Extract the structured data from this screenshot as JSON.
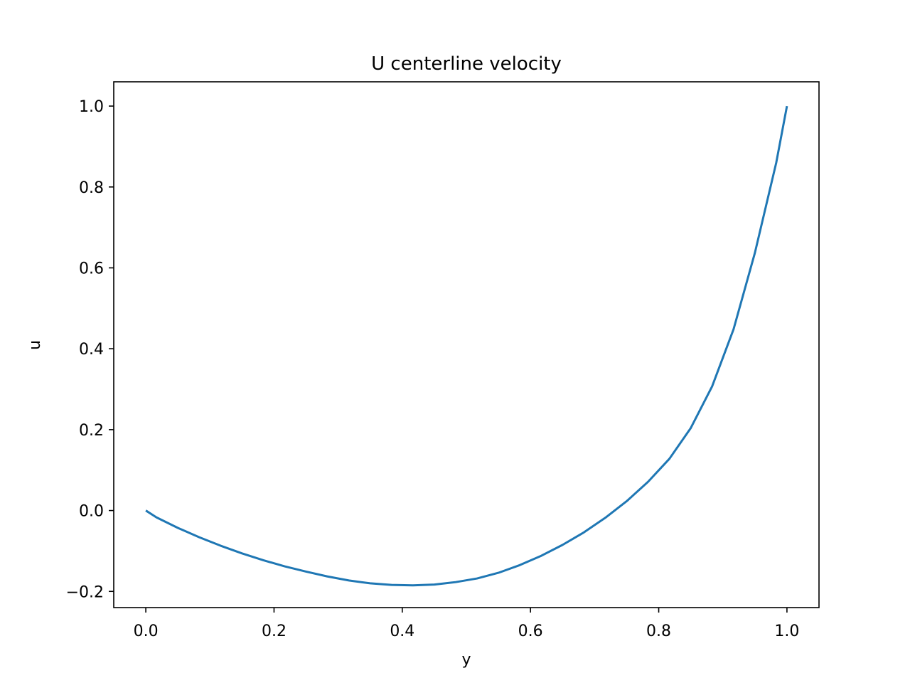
{
  "chart_data": {
    "type": "line",
    "title": "U centerline velocity",
    "xlabel": "y",
    "ylabel": "u",
    "xlim": [
      -0.05,
      1.05
    ],
    "ylim": [
      -0.24,
      1.06
    ],
    "xticks": [
      0.0,
      0.2,
      0.4,
      0.6,
      0.8,
      1.0
    ],
    "xtick_labels": [
      "0.0",
      "0.2",
      "0.4",
      "0.6",
      "0.8",
      "1.0"
    ],
    "yticks": [
      -0.2,
      0.0,
      0.2,
      0.4,
      0.6,
      0.8,
      1.0
    ],
    "ytick_labels": [
      "−0.2",
      "0.0",
      "0.2",
      "0.4",
      "0.6",
      "0.8",
      "1.0"
    ],
    "grid": false,
    "series": [
      {
        "color": "#1f77b4",
        "x": [
          0.0,
          0.0167,
          0.05,
          0.0833,
          0.1167,
          0.15,
          0.1833,
          0.2167,
          0.25,
          0.2833,
          0.3167,
          0.35,
          0.3833,
          0.4167,
          0.45,
          0.4833,
          0.5167,
          0.55,
          0.5833,
          0.6167,
          0.65,
          0.6833,
          0.7167,
          0.75,
          0.7833,
          0.8167,
          0.85,
          0.8833,
          0.9167,
          0.95,
          0.9833,
          1.0
        ],
        "y": [
          0.0,
          -0.017,
          -0.043,
          -0.066,
          -0.087,
          -0.106,
          -0.123,
          -0.138,
          -0.151,
          -0.163,
          -0.173,
          -0.18,
          -0.184,
          -0.185,
          -0.183,
          -0.177,
          -0.168,
          -0.154,
          -0.135,
          -0.112,
          -0.085,
          -0.054,
          -0.018,
          0.023,
          0.071,
          0.128,
          0.204,
          0.307,
          0.448,
          0.637,
          0.86,
          1.0
        ]
      }
    ]
  }
}
